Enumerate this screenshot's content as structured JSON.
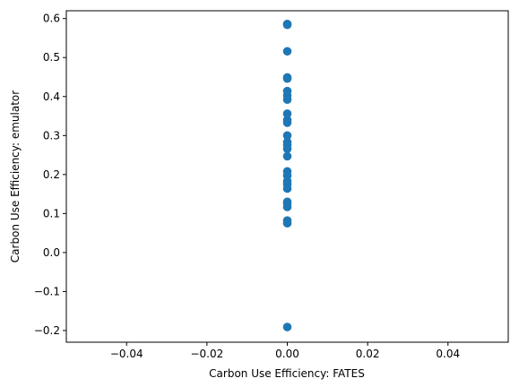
{
  "chart_data": {
    "type": "scatter",
    "title": "",
    "xlabel": "Carbon Use Efficiency: FATES",
    "ylabel": "Carbon Use Efficiency: emulator",
    "xlim": [
      -0.055,
      0.055
    ],
    "ylim": [
      -0.23,
      0.62
    ],
    "xticks": [
      -0.04,
      -0.02,
      0.0,
      0.02,
      0.04
    ],
    "xtick_labels": [
      "−0.04",
      "−0.02",
      "0.00",
      "0.02",
      "0.04"
    ],
    "yticks": [
      -0.2,
      -0.1,
      0.0,
      0.1,
      0.2,
      0.3,
      0.4,
      0.5,
      0.6
    ],
    "ytick_labels": [
      "−0.2",
      "−0.1",
      "0.0",
      "0.1",
      "0.2",
      "0.3",
      "0.4",
      "0.5",
      "0.6"
    ],
    "grid": false,
    "legend": "none",
    "marker_color": "#1f77b4",
    "series": [
      {
        "points": [
          {
            "x": 0.0,
            "y": 0.586
          },
          {
            "x": 0.0,
            "y": 0.584
          },
          {
            "x": 0.0,
            "y": 0.516
          },
          {
            "x": 0.0,
            "y": 0.449
          },
          {
            "x": 0.0,
            "y": 0.446
          },
          {
            "x": 0.0,
            "y": 0.414
          },
          {
            "x": 0.0,
            "y": 0.403
          },
          {
            "x": 0.0,
            "y": 0.392
          },
          {
            "x": 0.0,
            "y": 0.356
          },
          {
            "x": 0.0,
            "y": 0.34
          },
          {
            "x": 0.0,
            "y": 0.333
          },
          {
            "x": 0.0,
            "y": 0.3
          },
          {
            "x": 0.0,
            "y": 0.283
          },
          {
            "x": 0.0,
            "y": 0.276
          },
          {
            "x": 0.0,
            "y": 0.266
          },
          {
            "x": 0.0,
            "y": 0.247
          },
          {
            "x": 0.0,
            "y": 0.208
          },
          {
            "x": 0.0,
            "y": 0.197
          },
          {
            "x": 0.0,
            "y": 0.183
          },
          {
            "x": 0.0,
            "y": 0.175
          },
          {
            "x": 0.0,
            "y": 0.164
          },
          {
            "x": 0.0,
            "y": 0.13
          },
          {
            "x": 0.0,
            "y": 0.126
          },
          {
            "x": 0.0,
            "y": 0.117
          },
          {
            "x": 0.0,
            "y": 0.082
          },
          {
            "x": 0.0,
            "y": 0.075
          },
          {
            "x": 0.0,
            "y": -0.191
          }
        ]
      }
    ]
  }
}
